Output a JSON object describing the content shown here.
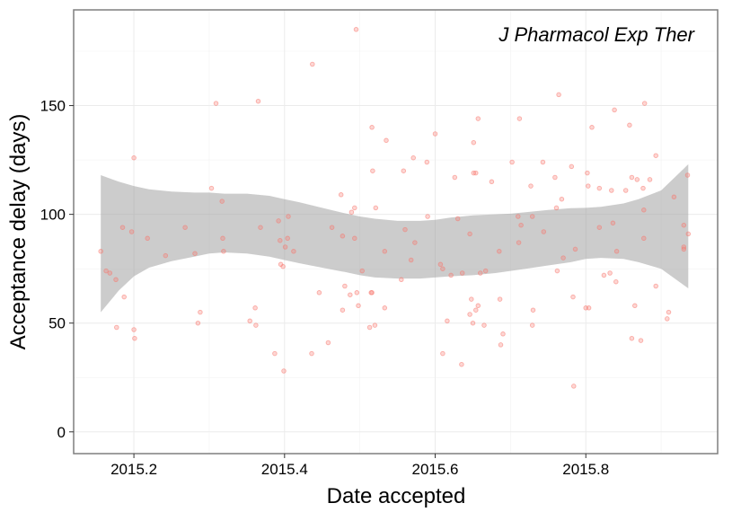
{
  "chart_data": {
    "type": "scatter",
    "title": "",
    "annotation": "J Pharmacol Exp Ther",
    "xlabel": "Date accepted",
    "ylabel": "Acceptance delay (days)",
    "xlim": [
      2015.12,
      2015.975
    ],
    "ylim": [
      -10,
      194
    ],
    "x_ticks": [
      2015.2,
      2015.4,
      2015.6,
      2015.8
    ],
    "x_tick_labels": [
      "2015.2",
      "2015.4",
      "2015.6",
      "2015.8"
    ],
    "y_ticks": [
      0,
      50,
      100,
      150
    ],
    "y_tick_labels": [
      "0",
      "50",
      "100",
      "150"
    ],
    "grid": true,
    "colors": {
      "point": "#F8766D",
      "band": "#999999",
      "grid": "#ebebeb",
      "border": "#7f7f7f"
    },
    "points": [
      [
        2015.156,
        83
      ],
      [
        2015.163,
        74
      ],
      [
        2015.168,
        73
      ],
      [
        2015.176,
        70
      ],
      [
        2015.177,
        48
      ],
      [
        2015.185,
        94
      ],
      [
        2015.187,
        62
      ],
      [
        2015.197,
        92
      ],
      [
        2015.2,
        126
      ],
      [
        2015.2,
        47
      ],
      [
        2015.201,
        43
      ],
      [
        2015.218,
        89
      ],
      [
        2015.242,
        81
      ],
      [
        2015.268,
        94
      ],
      [
        2015.281,
        82
      ],
      [
        2015.285,
        50
      ],
      [
        2015.288,
        55
      ],
      [
        2015.303,
        112
      ],
      [
        2015.309,
        151
      ],
      [
        2015.317,
        106
      ],
      [
        2015.318,
        89
      ],
      [
        2015.319,
        83
      ],
      [
        2015.354,
        51
      ],
      [
        2015.361,
        57
      ],
      [
        2015.362,
        49
      ],
      [
        2015.365,
        152
      ],
      [
        2015.368,
        94
      ],
      [
        2015.398,
        76
      ],
      [
        2015.399,
        28
      ],
      [
        2015.401,
        85
      ],
      [
        2015.404,
        89
      ],
      [
        2015.405,
        99
      ],
      [
        2015.412,
        83
      ],
      [
        2015.387,
        36
      ],
      [
        2015.392,
        97
      ],
      [
        2015.394,
        88
      ],
      [
        2015.395,
        77
      ],
      [
        2015.436,
        36
      ],
      [
        2015.437,
        169
      ],
      [
        2015.446,
        64
      ],
      [
        2015.458,
        41
      ],
      [
        2015.463,
        94
      ],
      [
        2015.475,
        109
      ],
      [
        2015.477,
        90
      ],
      [
        2015.477,
        56
      ],
      [
        2015.48,
        67
      ],
      [
        2015.487,
        63
      ],
      [
        2015.489,
        101
      ],
      [
        2015.493,
        89
      ],
      [
        2015.493,
        103
      ],
      [
        2015.495,
        185
      ],
      [
        2015.496,
        64
      ],
      [
        2015.498,
        58
      ],
      [
        2015.503,
        74
      ],
      [
        2015.513,
        48
      ],
      [
        2015.515,
        64
      ],
      [
        2015.516,
        64
      ],
      [
        2015.516,
        140
      ],
      [
        2015.517,
        120
      ],
      [
        2015.52,
        49
      ],
      [
        2015.521,
        103
      ],
      [
        2015.533,
        57
      ],
      [
        2015.533,
        83
      ],
      [
        2015.535,
        134
      ],
      [
        2015.555,
        70
      ],
      [
        2015.558,
        120
      ],
      [
        2015.56,
        93
      ],
      [
        2015.568,
        79
      ],
      [
        2015.573,
        87
      ],
      [
        2015.571,
        126
      ],
      [
        2015.589,
        124
      ],
      [
        2015.59,
        99
      ],
      [
        2015.6,
        137
      ],
      [
        2015.607,
        77
      ],
      [
        2015.61,
        75
      ],
      [
        2015.61,
        36
      ],
      [
        2015.616,
        51
      ],
      [
        2015.621,
        72
      ],
      [
        2015.626,
        117
      ],
      [
        2015.63,
        98
      ],
      [
        2015.635,
        31
      ],
      [
        2015.636,
        73
      ],
      [
        2015.646,
        54
      ],
      [
        2015.646,
        91
      ],
      [
        2015.648,
        61
      ],
      [
        2015.65,
        50
      ],
      [
        2015.651,
        133
      ],
      [
        2015.651,
        119
      ],
      [
        2015.654,
        119
      ],
      [
        2015.654,
        56
      ],
      [
        2015.657,
        58
      ],
      [
        2015.657,
        144
      ],
      [
        2015.66,
        73
      ],
      [
        2015.665,
        49
      ],
      [
        2015.667,
        74
      ],
      [
        2015.675,
        115
      ],
      [
        2015.685,
        83
      ],
      [
        2015.686,
        61
      ],
      [
        2015.687,
        40
      ],
      [
        2015.69,
        45
      ],
      [
        2015.702,
        124
      ],
      [
        2015.71,
        99
      ],
      [
        2015.711,
        87
      ],
      [
        2015.712,
        144
      ],
      [
        2015.714,
        95
      ],
      [
        2015.727,
        113
      ],
      [
        2015.729,
        99
      ],
      [
        2015.729,
        49
      ],
      [
        2015.73,
        56
      ],
      [
        2015.743,
        124
      ],
      [
        2015.744,
        92
      ],
      [
        2015.759,
        117
      ],
      [
        2015.761,
        103
      ],
      [
        2015.762,
        74
      ],
      [
        2015.764,
        155
      ],
      [
        2015.768,
        107
      ],
      [
        2015.77,
        80
      ],
      [
        2015.781,
        122
      ],
      [
        2015.783,
        62
      ],
      [
        2015.784,
        21
      ],
      [
        2015.786,
        84
      ],
      [
        2015.8,
        57
      ],
      [
        2015.802,
        119
      ],
      [
        2015.803,
        113
      ],
      [
        2015.804,
        57
      ],
      [
        2015.808,
        140
      ],
      [
        2015.818,
        94
      ],
      [
        2015.818,
        112
      ],
      [
        2015.824,
        72
      ],
      [
        2015.832,
        73
      ],
      [
        2015.834,
        111
      ],
      [
        2015.836,
        96
      ],
      [
        2015.838,
        148
      ],
      [
        2015.84,
        69
      ],
      [
        2015.841,
        83
      ],
      [
        2015.853,
        111
      ],
      [
        2015.858,
        141
      ],
      [
        2015.861,
        117
      ],
      [
        2015.861,
        43
      ],
      [
        2015.865,
        58
      ],
      [
        2015.868,
        116
      ],
      [
        2015.873,
        42
      ],
      [
        2015.876,
        112
      ],
      [
        2015.877,
        102
      ],
      [
        2015.877,
        89
      ],
      [
        2015.878,
        151
      ],
      [
        2015.885,
        116
      ],
      [
        2015.893,
        67
      ],
      [
        2015.893,
        127
      ],
      [
        2015.908,
        52
      ],
      [
        2015.91,
        55
      ],
      [
        2015.917,
        108
      ],
      [
        2015.93,
        95
      ],
      [
        2015.93,
        84
      ],
      [
        2015.935,
        118
      ],
      [
        2015.936,
        91
      ],
      [
        2015.93,
        85
      ]
    ],
    "smooth_band": {
      "x": [
        2015.156,
        2015.18,
        2015.2,
        2015.22,
        2015.25,
        2015.28,
        2015.3,
        2015.32,
        2015.35,
        2015.38,
        2015.4,
        2015.42,
        2015.45,
        2015.48,
        2015.5,
        2015.52,
        2015.55,
        2015.58,
        2015.6,
        2015.62,
        2015.65,
        2015.68,
        2015.7,
        2015.72,
        2015.75,
        2015.78,
        2015.8,
        2015.82,
        2015.85,
        2015.87,
        2015.9,
        2015.936
      ],
      "upper": [
        118,
        115,
        113,
        111.5,
        110.5,
        110,
        110,
        109.5,
        109.5,
        108.5,
        107,
        105.5,
        103,
        100.5,
        99,
        98,
        97,
        97,
        97.5,
        98.5,
        99.5,
        100,
        100.3,
        101,
        102,
        102.8,
        103,
        103.5,
        105,
        107,
        111,
        123
      ],
      "lower": [
        55,
        65,
        71.5,
        75.5,
        78.5,
        80.5,
        82,
        82.5,
        82,
        80.5,
        79,
        77.5,
        75.5,
        73.5,
        72,
        71,
        70.5,
        70.5,
        71,
        71.5,
        72,
        73,
        74,
        75,
        76.5,
        78,
        79.5,
        80,
        79.5,
        78,
        75,
        66
      ]
    }
  }
}
